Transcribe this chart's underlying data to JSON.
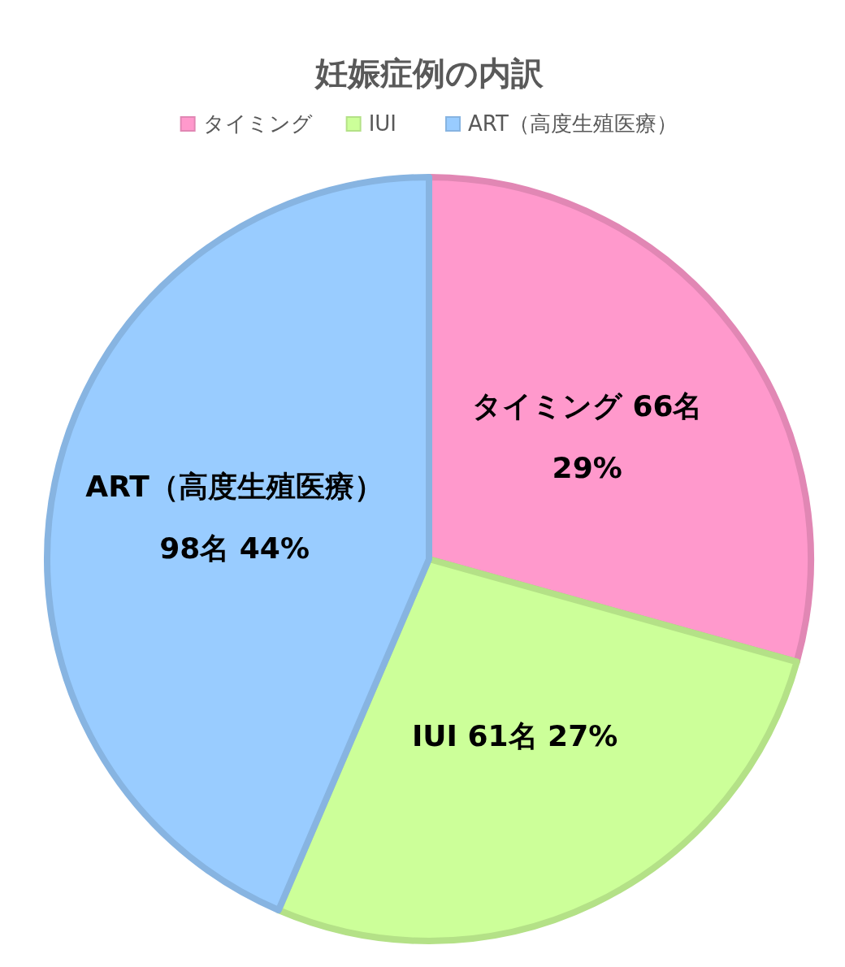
{
  "chart_data": {
    "type": "pie",
    "title": "妊娠症例の内訳",
    "categories": [
      "タイミング",
      "IUI",
      "ART（高度生殖医療）"
    ],
    "values": [
      66,
      61,
      98
    ],
    "colors": [
      "#ff99cc",
      "#ccff99",
      "#99ccff"
    ],
    "value_labels": [
      "タイミング 66名\n29%",
      "IUI 61名 27%",
      "ART（高度生殖医療）\n98名 44%"
    ],
    "legend": "top"
  }
}
